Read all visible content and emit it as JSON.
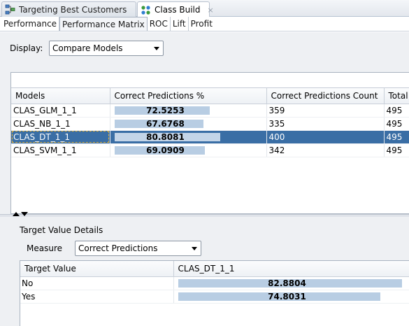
{
  "document_tabs": [
    {
      "label": "Targeting Best Customers",
      "icon": "workflow-icon",
      "active": false
    },
    {
      "label": "Class Build",
      "icon": "class-build-icon",
      "active": true,
      "close": "×"
    }
  ],
  "sub_tabs": [
    "Performance",
    "Performance Matrix",
    "ROC",
    "Lift",
    "Profit"
  ],
  "selected_sub_tab": "Performance Matrix",
  "display": {
    "label": "Display:",
    "value": "Compare Models"
  },
  "models_table": {
    "columns": [
      "Models",
      "Correct Predictions %",
      "Correct Predictions Count",
      "Total"
    ],
    "rows": [
      {
        "model": "CLAS_GLM_1_1",
        "pct": "72.5253",
        "pct_value": 72.5253,
        "count": "359",
        "total": "495",
        "selected": false
      },
      {
        "model": "CLAS_NB_1_1",
        "pct": "67.6768",
        "pct_value": 67.6768,
        "count": "335",
        "total": "495",
        "selected": false
      },
      {
        "model": "CLAS_DT_1_1",
        "pct": "80.8081",
        "pct_value": 80.8081,
        "count": "400",
        "total": "495",
        "selected": true
      },
      {
        "model": "CLAS_SVM_1_1",
        "pct": "69.0909",
        "pct_value": 69.0909,
        "count": "342",
        "total": "495",
        "selected": false
      }
    ]
  },
  "details": {
    "title": "Target Value Details",
    "measure_label": "Measure",
    "measure_value": "Correct Predictions",
    "columns": [
      "Target Value",
      "CLAS_DT_1_1"
    ],
    "rows": [
      {
        "target": "No",
        "value": "82.8804",
        "value_num": 82.8804
      },
      {
        "target": "Yes",
        "value": "74.8031",
        "value_num": 74.8031
      }
    ]
  },
  "colors": {
    "selection": "#3a6ea5",
    "bar": "#b8cde3",
    "panel_bg": "#eef0f3"
  }
}
